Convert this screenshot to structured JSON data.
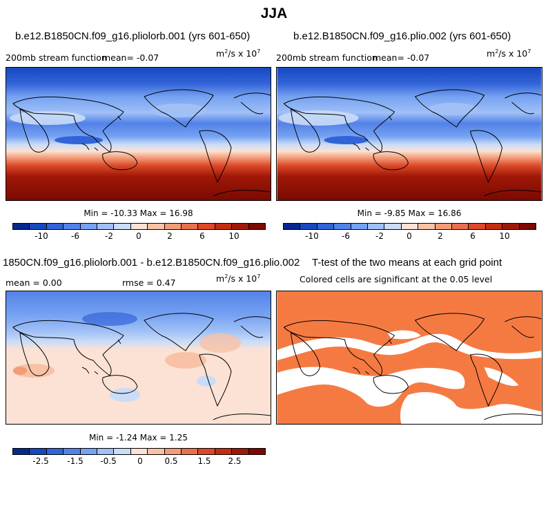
{
  "title": "JJA",
  "colors": {
    "abs_palette": [
      "#08288c",
      "#1848c0",
      "#3264d8",
      "#5282e8",
      "#76a2f2",
      "#a0c0f6",
      "#cadcf8",
      "#fbe2d4",
      "#f8c2a6",
      "#f29c78",
      "#e87050",
      "#dc4828",
      "#c42c14",
      "#a01808",
      "#7a0a02"
    ],
    "diff_palette": [
      "#08288c",
      "#1848c0",
      "#3264d8",
      "#5282e8",
      "#76a2f2",
      "#a0c0f6",
      "#cadcf8",
      "#fbe2d4",
      "#f8c2a6",
      "#f29c78",
      "#e87050",
      "#dc4828",
      "#c42c14",
      "#a01808",
      "#7a0a02"
    ],
    "significant_fill": "#f57a42"
  },
  "panels": {
    "p1": {
      "title": "b.e12.B1850CN.f09_g16.pliolorb.001 (yrs 601-650)",
      "variable": "200mb stream function",
      "mean_text": "mean=  -0.07",
      "units_base": "m",
      "units_exp": "2",
      "units_mid": "/s x 10",
      "units_exp2": "7",
      "minmax": "Min = -10.33 Max =  16.98",
      "ticks": [
        "-10",
        "-6",
        "-2",
        "0",
        "2",
        "6",
        "10"
      ]
    },
    "p2": {
      "title": "b.e12.B1850CN.f09_g16.plio.002 (yrs 601-650)",
      "variable": "200mb stream function",
      "mean_text": "mean=  -0.07",
      "units_base": "m",
      "units_exp": "2",
      "units_mid": "/s x 10",
      "units_exp2": "7",
      "minmax": "Min =  -9.85 Max =  16.86",
      "ticks": [
        "-10",
        "-6",
        "-2",
        "0",
        "2",
        "6",
        "10"
      ]
    },
    "p3": {
      "title": "1850CN.f09_g16.pliolorb.001 - b.e12.B1850CN.f09_g16.plio.002",
      "mean_text": "mean =   0.00",
      "rmse_text": "rmse =   0.47",
      "units_base": "m",
      "units_exp": "2",
      "units_mid": "/s x 10",
      "units_exp2": "7",
      "minmax": "Min = -1.24 Max =   1.25",
      "ticks": [
        "-2.5",
        "-1.5",
        "-0.5",
        "0",
        "0.5",
        "1.5",
        "2.5"
      ]
    },
    "p4": {
      "title": "T-test of the two means at each grid point",
      "subtitle": "Colored cells are significant at the 0.05 level"
    }
  }
}
